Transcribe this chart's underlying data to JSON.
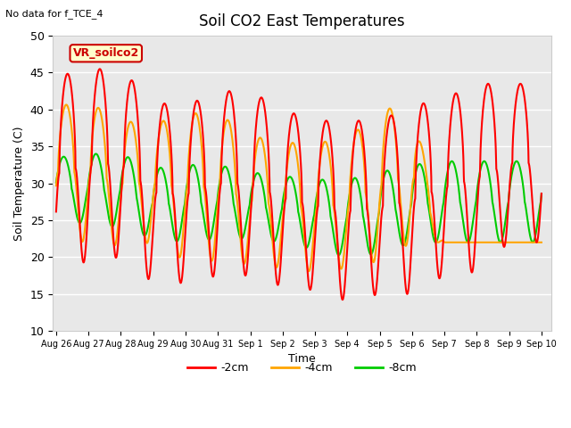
{
  "title": "Soil CO2 East Temperatures",
  "top_left_text": "No data for f_TCE_4",
  "annotation_text": "VR_soilco2",
  "xlabel": "Time",
  "ylabel": "Soil Temperature (C)",
  "ylim": [
    10,
    50
  ],
  "yticks": [
    10,
    15,
    20,
    25,
    30,
    35,
    40,
    45,
    50
  ],
  "date_labels": [
    "Aug 26",
    "Aug 27",
    "Aug 28",
    "Aug 29",
    "Aug 30",
    "Aug 31",
    "Sep 1",
    "Sep 2",
    "Sep 3",
    "Sep 4",
    "Sep 5",
    "Sep 6",
    "Sep 7",
    "Sep 8",
    "Sep 9",
    "Sep 10"
  ],
  "line_colors": [
    "#ff0000",
    "#ffa500",
    "#00cc00"
  ],
  "line_labels": [
    "-2cm",
    "-4cm",
    "-8cm"
  ],
  "background_color": "#e8e8e8",
  "red_peaks": [
    44.5,
    45.5,
    45.5,
    41.0,
    40.5,
    42.5,
    42.5,
    40.0,
    38.5,
    38.5,
    38.5,
    40.5,
    41.5,
    43.5
  ],
  "red_troughs": [
    18.0,
    19.5,
    20.0,
    16.5,
    16.5,
    17.5,
    17.5,
    16.0,
    15.5,
    14.0,
    15.0,
    15.0,
    17.5,
    18.0,
    22.0
  ],
  "orange_peaks": [
    40.5,
    41.0,
    38.5,
    38.0,
    39.5,
    39.5,
    36.5,
    35.5,
    35.5,
    36.0,
    40.0,
    40.5,
    22.0
  ],
  "orange_troughs": [
    22.5,
    22.0,
    21.5,
    22.0,
    19.5,
    19.5,
    19.0,
    18.5,
    18.0,
    18.5,
    19.5,
    22.0,
    22.0
  ],
  "green_peaks": [
    33.5,
    34.0,
    34.0,
    32.0,
    32.5,
    32.5,
    31.5,
    31.0,
    30.5,
    30.5,
    31.5,
    32.5,
    33.0
  ],
  "green_troughs": [
    25.0,
    24.5,
    24.0,
    22.5,
    22.0,
    22.5,
    22.5,
    22.0,
    21.0,
    20.0,
    20.5,
    22.0,
    22.0
  ]
}
